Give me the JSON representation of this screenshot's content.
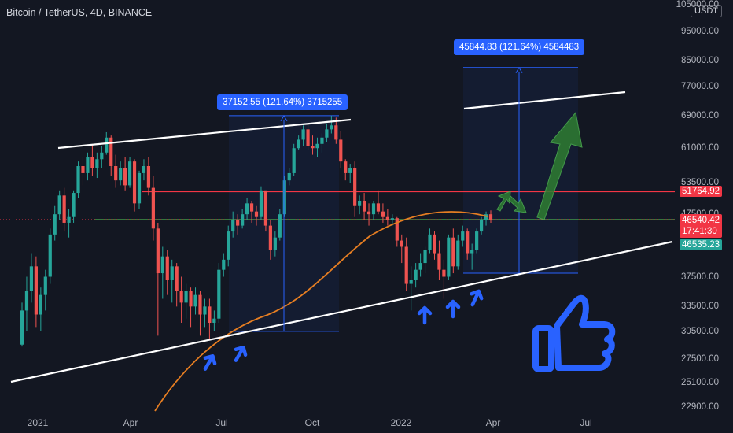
{
  "header": {
    "title": "Bitcoin / TetherUS, 4D, BINANCE",
    "currency": "USDT"
  },
  "chart_data": {
    "type": "candlestick",
    "ylabels": [
      "105000.00",
      "95000.00",
      "85000.00",
      "77000.00",
      "69000.00",
      "61000.00",
      "53500.00",
      "47500.00",
      "37500.00",
      "33500.00",
      "30500.00",
      "27500.00",
      "25100.00",
      "22900.00"
    ],
    "xlabels": [
      "2021",
      "Apr",
      "Jul",
      "Oct",
      "2022",
      "Apr",
      "Jul"
    ],
    "series": [
      {
        "values": [
          [
            29000,
            34000,
            28800,
            33000
          ],
          [
            33000,
            37500,
            30500,
            35500
          ],
          [
            35500,
            41000,
            34000,
            39000
          ],
          [
            39000,
            40500,
            31000,
            32500
          ],
          [
            32500,
            36000,
            30500,
            35000
          ],
          [
            35000,
            38500,
            33000,
            37500
          ],
          [
            37500,
            45000,
            36500,
            44000
          ],
          [
            44000,
            49000,
            43000,
            47500
          ],
          [
            47500,
            52000,
            46500,
            51000
          ],
          [
            51000,
            52500,
            44500,
            46000
          ],
          [
            46000,
            48500,
            43500,
            47000
          ],
          [
            47000,
            52000,
            46000,
            51500
          ],
          [
            51500,
            58000,
            50500,
            57000
          ],
          [
            57000,
            59000,
            53000,
            55500
          ],
          [
            55500,
            60000,
            54000,
            59000
          ],
          [
            59000,
            61800,
            55000,
            56500
          ],
          [
            56500,
            60000,
            54500,
            58500
          ],
          [
            58500,
            61500,
            56500,
            60000
          ],
          [
            60000,
            64800,
            59500,
            63500
          ],
          [
            63500,
            64000,
            55000,
            57000
          ],
          [
            57000,
            59500,
            52500,
            54000
          ],
          [
            54000,
            58000,
            53000,
            56500
          ],
          [
            56500,
            59000,
            52000,
            53000
          ],
          [
            53000,
            59000,
            52500,
            58000
          ],
          [
            58000,
            58500,
            48000,
            49500
          ],
          [
            49500,
            56000,
            48500,
            55500
          ],
          [
            55500,
            58500,
            54000,
            57000
          ],
          [
            57000,
            59000,
            51000,
            52500
          ],
          [
            52500,
            55000,
            43000,
            45000
          ],
          [
            45000,
            46000,
            30000,
            38000
          ],
          [
            38000,
            42000,
            34500,
            40500
          ],
          [
            40500,
            41500,
            35000,
            37000
          ],
          [
            37000,
            40000,
            34000,
            39000
          ],
          [
            39000,
            39500,
            33500,
            35500
          ],
          [
            35500,
            37500,
            31500,
            34000
          ],
          [
            34000,
            36500,
            32000,
            35500
          ],
          [
            35500,
            36000,
            31000,
            33500
          ],
          [
            33500,
            36000,
            32500,
            35000
          ],
          [
            35000,
            35500,
            30000,
            32500
          ],
          [
            32500,
            34500,
            31000,
            33500
          ],
          [
            33500,
            34500,
            29500,
            31500
          ],
          [
            31500,
            33000,
            30500,
            32000
          ],
          [
            32000,
            39500,
            31500,
            38500
          ],
          [
            38500,
            41000,
            37500,
            40000
          ],
          [
            40000,
            45500,
            39000,
            44500
          ],
          [
            44500,
            48000,
            43500,
            46500
          ],
          [
            46500,
            47500,
            44000,
            45500
          ],
          [
            45500,
            48500,
            45000,
            47500
          ],
          [
            47500,
            50500,
            46500,
            49500
          ],
          [
            49500,
            50000,
            46000,
            48000
          ],
          [
            48000,
            49000,
            45500,
            47000
          ],
          [
            47000,
            52800,
            46500,
            52000
          ],
          [
            52000,
            51500,
            44500,
            45500
          ],
          [
            45500,
            46500,
            40000,
            41500
          ],
          [
            41500,
            44500,
            40500,
            43500
          ],
          [
            43500,
            48500,
            43000,
            47500
          ],
          [
            47500,
            55000,
            47000,
            54000
          ],
          [
            54000,
            56500,
            53000,
            55500
          ],
          [
            55500,
            62000,
            55000,
            61000
          ],
          [
            61000,
            64000,
            60500,
            63000
          ],
          [
            63000,
            66500,
            61500,
            65500
          ],
          [
            65500,
            67000,
            60500,
            61500
          ],
          [
            61500,
            64000,
            59500,
            61000
          ],
          [
            61000,
            63500,
            59000,
            62000
          ],
          [
            62000,
            64500,
            60000,
            63500
          ],
          [
            63500,
            67000,
            62500,
            65500
          ],
          [
            65500,
            69000,
            64500,
            66500
          ],
          [
            66500,
            68500,
            62000,
            63000
          ],
          [
            63000,
            65000,
            56500,
            58000
          ],
          [
            58000,
            58500,
            54000,
            55500
          ],
          [
            55500,
            57500,
            53500,
            56500
          ],
          [
            56500,
            58000,
            47000,
            49000
          ],
          [
            49000,
            51000,
            47500,
            50000
          ],
          [
            50000,
            51500,
            46500,
            48000
          ],
          [
            48000,
            49500,
            45500,
            47500
          ],
          [
            47500,
            50000,
            46500,
            49500
          ],
          [
            49500,
            52000,
            47500,
            48000
          ],
          [
            48000,
            49500,
            46000,
            47000
          ],
          [
            47000,
            48500,
            45500,
            46500
          ],
          [
            46500,
            47500,
            45500,
            46800
          ],
          [
            46800,
            47000,
            42000,
            43000
          ],
          [
            43000,
            44000,
            39500,
            42000
          ],
          [
            42000,
            43500,
            35500,
            36500
          ],
          [
            36500,
            39000,
            33000,
            37000
          ],
          [
            37000,
            39500,
            36000,
            38500
          ],
          [
            38500,
            41000,
            37500,
            39500
          ],
          [
            39500,
            42000,
            38000,
            41500
          ],
          [
            41500,
            45000,
            41000,
            44000
          ],
          [
            44000,
            44500,
            40000,
            41000
          ],
          [
            41000,
            43000,
            37000,
            38500
          ],
          [
            38500,
            40000,
            34500,
            37500
          ],
          [
            37500,
            44000,
            37000,
            43500
          ],
          [
            43500,
            45000,
            38000,
            39000
          ],
          [
            39000,
            44000,
            38500,
            43000
          ],
          [
            43000,
            45500,
            42000,
            44500
          ],
          [
            44500,
            45000,
            40000,
            41000
          ],
          [
            41000,
            42500,
            38500,
            41500
          ],
          [
            41500,
            45000,
            41000,
            44500
          ],
          [
            44500,
            47000,
            44000,
            46500
          ],
          [
            46500,
            48000,
            45500,
            47500
          ],
          [
            47500,
            48200,
            46000,
            46540
          ]
        ]
      }
    ],
    "lines": {
      "resistance_price": "51764.92",
      "green_level": "46535.23",
      "current_price": "46540.42",
      "countdown": "17:41:30"
    },
    "measurements": [
      {
        "label": "37152.55 (121.64%) 3715255"
      },
      {
        "label": "45844.83 (121.64%) 4584483"
      }
    ],
    "colors": {
      "bg": "#131722",
      "up": "#26a69a",
      "down": "#ef5350",
      "ma": "#e67e22",
      "red_line": "#f23645",
      "green_line": "#4caf50",
      "measure": "#2962ff",
      "arrow": "#2962ff",
      "thumb": "#2962ff",
      "green_arrow": "#2e7d32"
    }
  }
}
